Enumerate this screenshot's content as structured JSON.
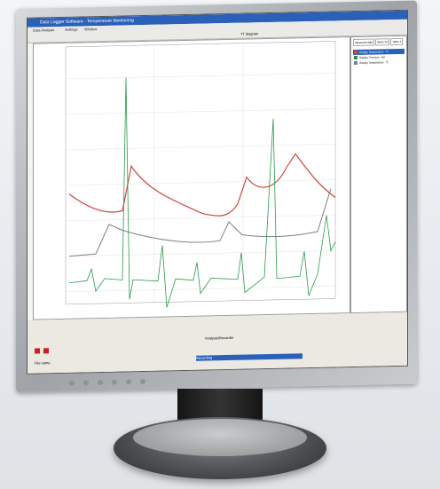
{
  "window": {
    "title": "Data Logger Software - Temperature Monitoring"
  },
  "menu": [
    "Data Analysis",
    "Settings",
    "Window"
  ],
  "toolbar": {
    "chart_title": "TT diagram"
  },
  "side": {
    "tabs": [
      "Measured data",
      "Alarm list",
      "Table 1"
    ],
    "rows": [
      {
        "label": "Display Temperature",
        "value": "",
        "unit": "°C",
        "color": "#d0453f"
      },
      {
        "label": "Display Pressure",
        "value": "",
        "unit": "bar",
        "color": "#2a8a49"
      },
      {
        "label": "Display Temperature",
        "value": "",
        "unit": "°C",
        "color": "#7a7aa0"
      }
    ]
  },
  "bottom": {
    "section": "Analysis/Recorder",
    "status": "Recording",
    "file_label": "File name"
  },
  "colors": {
    "red": "#d0453f",
    "green": "#2a9a4a",
    "gray": "#7f7f8a"
  }
}
